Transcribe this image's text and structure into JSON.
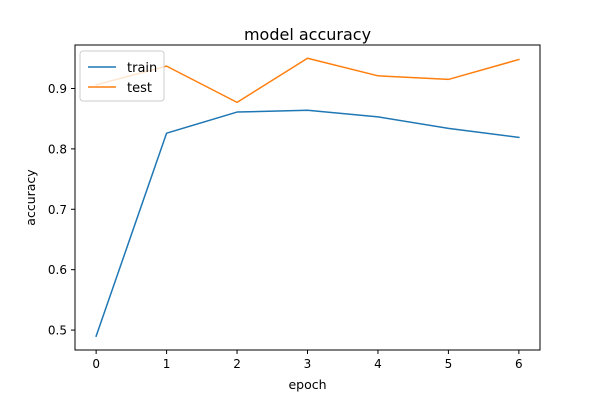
{
  "chart_data": {
    "type": "line",
    "title": "model accuracy",
    "xlabel": "epoch",
    "ylabel": "accuracy",
    "x": [
      0,
      1,
      2,
      3,
      4,
      5,
      6
    ],
    "xlim": [
      -0.3,
      6.3
    ],
    "ylim": [
      0.467,
      0.972
    ],
    "xticks": [
      "0",
      "1",
      "2",
      "3",
      "4",
      "5",
      "6"
    ],
    "yticks": [
      "0.5",
      "0.6",
      "0.7",
      "0.8",
      "0.9"
    ],
    "ytick_values": [
      0.5,
      0.6,
      0.7,
      0.8,
      0.9
    ],
    "grid": false,
    "legend_position": "upper-left",
    "series": [
      {
        "name": "train",
        "color": "#1f77b4",
        "values": [
          0.49,
          0.826,
          0.861,
          0.864,
          0.853,
          0.834,
          0.819
        ]
      },
      {
        "name": "test",
        "color": "#ff7f0e",
        "values": [
          0.906,
          0.937,
          0.877,
          0.95,
          0.921,
          0.915,
          0.948
        ]
      }
    ]
  }
}
